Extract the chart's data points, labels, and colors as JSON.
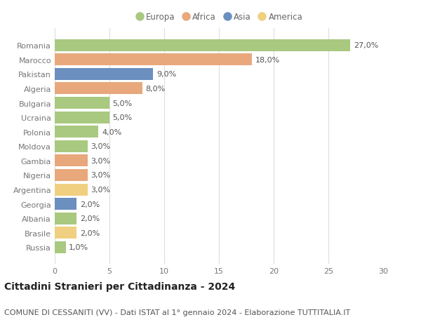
{
  "countries": [
    "Romania",
    "Marocco",
    "Pakistan",
    "Algeria",
    "Bulgaria",
    "Ucraina",
    "Polonia",
    "Moldova",
    "Gambia",
    "Nigeria",
    "Argentina",
    "Georgia",
    "Albania",
    "Brasile",
    "Russia"
  ],
  "values": [
    27.0,
    18.0,
    9.0,
    8.0,
    5.0,
    5.0,
    4.0,
    3.0,
    3.0,
    3.0,
    3.0,
    2.0,
    2.0,
    2.0,
    1.0
  ],
  "continents": [
    "Europa",
    "Africa",
    "Asia",
    "Africa",
    "Europa",
    "Europa",
    "Europa",
    "Europa",
    "Africa",
    "Africa",
    "America",
    "Asia",
    "Europa",
    "America",
    "Europa"
  ],
  "colors": {
    "Europa": "#a8c97f",
    "Africa": "#e8a87c",
    "Asia": "#6b8fbf",
    "America": "#f0d080"
  },
  "legend_order": [
    "Europa",
    "Africa",
    "Asia",
    "America"
  ],
  "xlim": [
    0,
    30
  ],
  "xticks": [
    0,
    5,
    10,
    15,
    20,
    25,
    30
  ],
  "title": "Cittadini Stranieri per Cittadinanza - 2024",
  "subtitle": "COMUNE DI CESSANITI (VV) - Dati ISTAT al 1° gennaio 2024 - Elaborazione TUTTITALIA.IT",
  "background_color": "#ffffff",
  "grid_color": "#dddddd",
  "bar_height": 0.82,
  "title_fontsize": 10,
  "subtitle_fontsize": 8,
  "label_fontsize": 8,
  "tick_fontsize": 8,
  "legend_fontsize": 8.5
}
